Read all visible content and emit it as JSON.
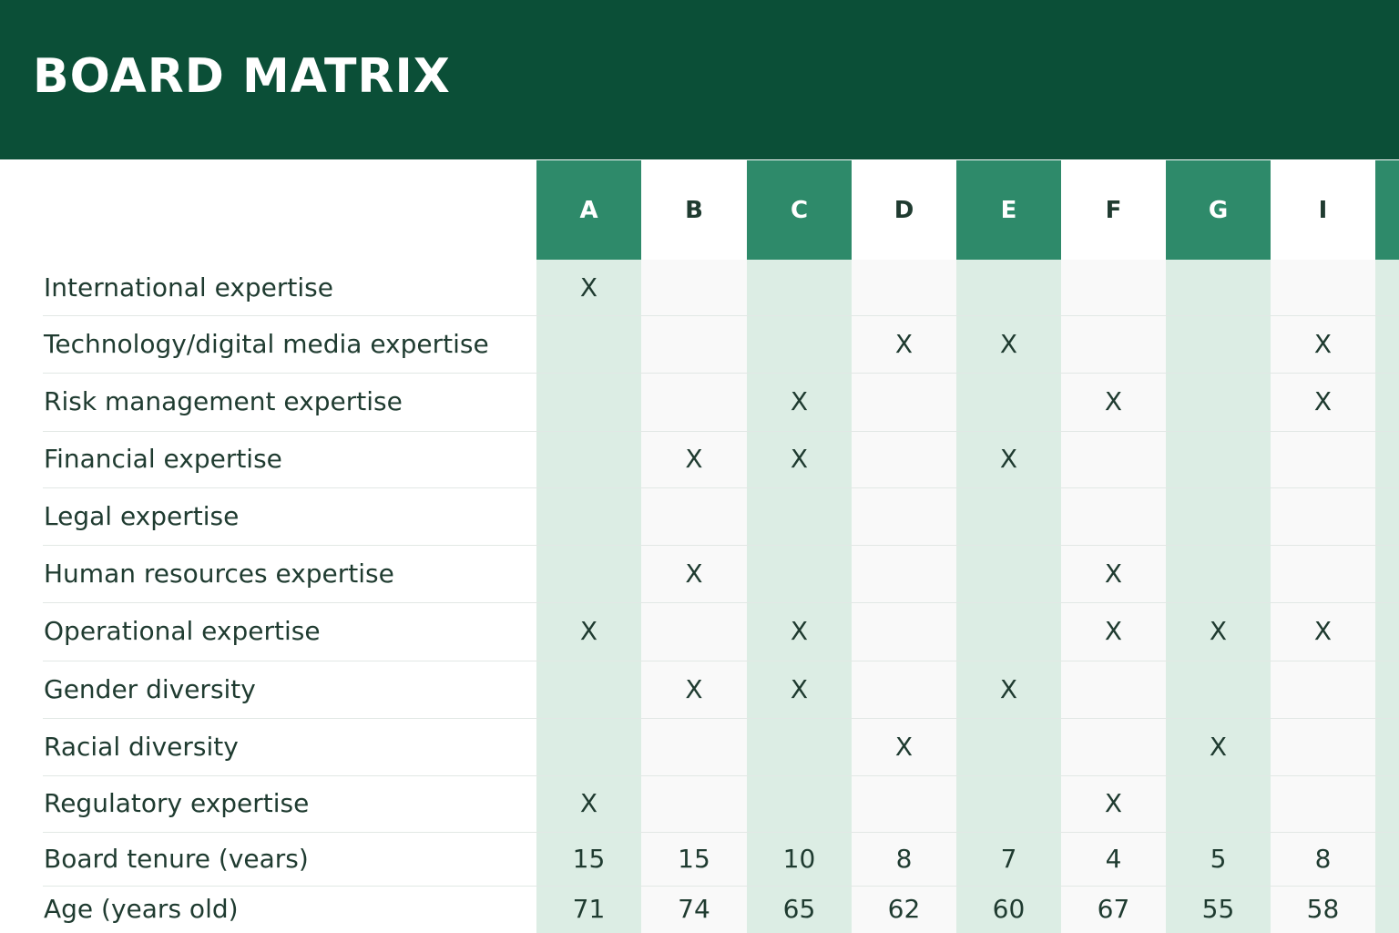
{
  "title": "BOARD MATRIX",
  "colors": {
    "header_bg": "#0b4f37",
    "accent_col_head": "#2e8a6a",
    "accent_col_body": "#dcede4",
    "plain_col_body": "#f9f9f9"
  },
  "columns": [
    "A",
    "B",
    "C",
    "D",
    "E",
    "F",
    "G",
    "I",
    ""
  ],
  "rows": [
    {
      "label": "International expertise",
      "cells": [
        "X",
        "",
        "",
        "",
        "",
        "",
        "",
        ""
      ]
    },
    {
      "label": "Technology/digital media expertise",
      "cells": [
        "",
        "",
        "",
        "X",
        "X",
        "",
        "",
        "X"
      ]
    },
    {
      "label": "Risk management expertise",
      "cells": [
        "",
        "",
        "X",
        "",
        "",
        "X",
        "",
        "X"
      ]
    },
    {
      "label": "Financial expertise",
      "cells": [
        "",
        "X",
        "X",
        "",
        "X",
        "",
        "",
        ""
      ]
    },
    {
      "label": "Legal expertise",
      "cells": [
        "",
        "",
        "",
        "",
        "",
        "",
        "",
        ""
      ]
    },
    {
      "label": "Human resources  expertise",
      "cells": [
        "",
        "X",
        "",
        "",
        "",
        "X",
        "",
        ""
      ]
    },
    {
      "label": "Operational expertise",
      "cells": [
        "X",
        "",
        "X",
        "",
        "",
        "X",
        "X",
        "X"
      ]
    },
    {
      "label": "Gender diversity",
      "cells": [
        "",
        "X",
        "X",
        "",
        "X",
        "",
        "",
        ""
      ]
    },
    {
      "label": "Racial diversity",
      "cells": [
        "",
        "",
        "",
        "X",
        "",
        "",
        "X",
        ""
      ]
    },
    {
      "label": "Regulatory expertise",
      "cells": [
        "X",
        "",
        "",
        "",
        "",
        "X",
        "",
        ""
      ]
    },
    {
      "label": "Board tenure (vears)",
      "cells": [
        "15",
        "15",
        "10",
        "8",
        "7",
        "4",
        "5",
        "8"
      ]
    },
    {
      "label": "Age (years old)",
      "cells": [
        "71",
        "74",
        "65",
        "62",
        "60",
        "67",
        "55",
        "58"
      ]
    }
  ]
}
